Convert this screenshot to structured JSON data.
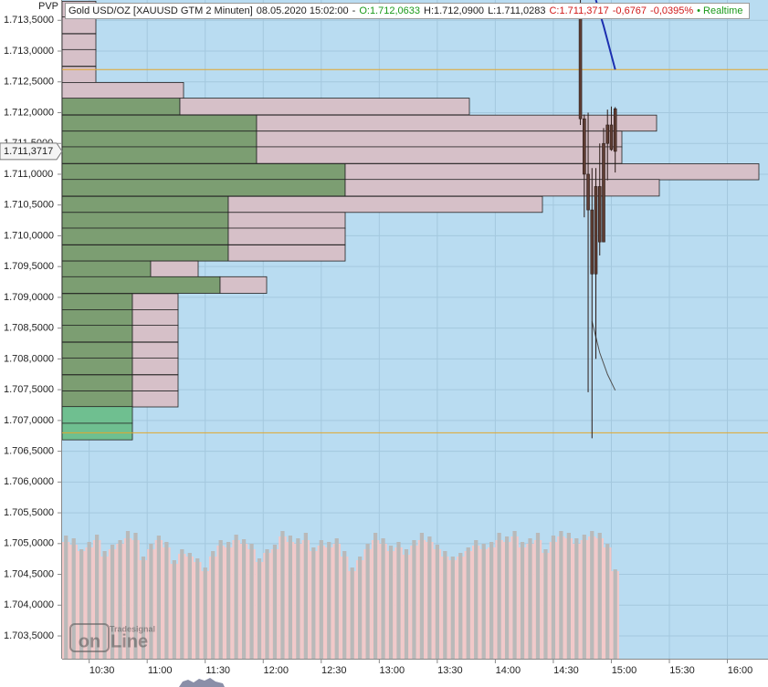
{
  "chart_data": {
    "type": "candlestick",
    "header": {
      "instrument": "Gold USD/OZ [XAUUSD GTM 2 Minuten]",
      "datetime": "08.05.2020 15:02:00",
      "separator": "-",
      "open": "O:1.712,0633",
      "high": "H:1.712,0900",
      "low": "L:1.711,0283",
      "close": "C:1.711,3717",
      "change": "-0,6767",
      "change_pct": "-0,0395%",
      "status": "• Realtime"
    },
    "pvp_label": "PVP",
    "xlim": [
      "10:16",
      "16:21"
    ],
    "xticks": [
      "10:30",
      "11:00",
      "11:30",
      "12:00",
      "12:30",
      "13:00",
      "13:30",
      "14:00",
      "14:30",
      "15:00",
      "15:30",
      "16:00"
    ],
    "ylim": [
      1.70313,
      1.71383
    ],
    "yticks": [
      {
        "value": 1.7135,
        "label": "1.713,5000"
      },
      {
        "value": 1.713,
        "label": "1.713,0000"
      },
      {
        "value": 1.7125,
        "label": "1.712,5000"
      },
      {
        "value": 1.712,
        "label": "1.712,0000"
      },
      {
        "value": 1.7115,
        "label": "1.711,5000"
      },
      {
        "value": 1.711,
        "label": "1.711,0000"
      },
      {
        "value": 1.7105,
        "label": "1.710,5000"
      },
      {
        "value": 1.71,
        "label": "1.710,0000"
      },
      {
        "value": 1.7095,
        "label": "1.709,5000"
      },
      {
        "value": 1.709,
        "label": "1.709,0000"
      },
      {
        "value": 1.7085,
        "label": "1.708,5000"
      },
      {
        "value": 1.708,
        "label": "1.708,0000"
      },
      {
        "value": 1.7075,
        "label": "1.707,5000"
      },
      {
        "value": 1.707,
        "label": "1.707,0000"
      },
      {
        "value": 1.7065,
        "label": "1.706,5000"
      },
      {
        "value": 1.706,
        "label": "1.706,0000"
      },
      {
        "value": 1.7055,
        "label": "1.705,5000"
      },
      {
        "value": 1.705,
        "label": "1.705,0000"
      },
      {
        "value": 1.7045,
        "label": "1.704,5000"
      },
      {
        "value": 1.704,
        "label": "1.704,0000"
      },
      {
        "value": 1.7035,
        "label": "1.703,5000"
      }
    ],
    "grid": true,
    "candles": {
      "color": "#5e3d33",
      "x": [
        "14:44",
        "14:46",
        "14:48",
        "14:50",
        "14:52",
        "14:54",
        "14:56",
        "14:58",
        "15:00",
        "15:02"
      ],
      "open": [
        1.71353,
        1.7119,
        1.711,
        1.71042,
        1.70938,
        1.7108,
        1.7099,
        1.7115,
        1.7118,
        1.7120633
      ],
      "high": [
        1.71383,
        1.71197,
        1.712,
        1.7111,
        1.7111,
        1.7115,
        1.71175,
        1.71205,
        1.7121,
        1.71209
      ],
      "low": [
        1.7118,
        1.7103,
        1.70746,
        1.70671,
        1.708,
        1.70968,
        1.7099,
        1.7109,
        1.71138,
        1.7110283
      ],
      "close": [
        1.7119,
        1.711,
        1.71042,
        1.70938,
        1.7108,
        1.7099,
        1.7115,
        1.7118,
        1.7114,
        1.7113717
      ]
    },
    "lines": [
      {
        "color": "#1c2fb0",
        "x": [
          "14:52",
          "14:56",
          "15:02"
        ],
        "values": [
          1.71383,
          1.71341,
          1.7127
        ]
      },
      {
        "color": "#505050",
        "x": [
          "14:50",
          "14:54",
          "14:58",
          "15:02"
        ],
        "values": [
          1.70861,
          1.7081,
          1.70775,
          1.70749
        ]
      }
    ],
    "levels": {
      "color": "#e2a72e",
      "values": [
        1.7127,
        1.7068
      ]
    },
    "last_price": {
      "value": 1.7113717,
      "label": "1.711,3717"
    },
    "profile": {
      "buy_color": "#7c9e72",
      "sell_color": "#d6c0c8",
      "prices": [
        1.71368,
        1.71342,
        1.71315,
        1.71289,
        1.71262,
        1.71236,
        1.7121,
        1.71183,
        1.71157,
        1.71131,
        1.71104,
        1.71078,
        1.71051,
        1.71025,
        1.70999,
        1.70972,
        1.70946,
        1.7092,
        1.70893,
        1.70867,
        1.70841,
        1.70814,
        1.70788,
        1.70761,
        1.70735,
        1.70709,
        1.70682
      ],
      "buy": [
        0,
        0,
        0,
        0,
        0,
        0,
        129,
        213,
        213,
        213,
        310,
        310,
        182,
        182,
        182,
        182,
        97,
        173,
        77,
        77,
        77,
        77,
        77,
        77,
        77,
        77,
        77
      ],
      "sell": [
        37,
        37,
        37,
        37,
        37,
        133,
        317,
        438,
        400,
        400,
        453,
        344,
        344,
        128,
        128,
        128,
        52,
        51,
        50,
        50,
        50,
        50,
        50,
        50,
        50,
        0,
        0
      ],
      "buy_colors": [
        "#7c9e72",
        "#7c9e72",
        "#7c9e72",
        "#7c9e72",
        "#7c9e72",
        "#7c9e72",
        "#7c9e72",
        "#7c9e72",
        "#7c9e72",
        "#7c9e72",
        "#7c9e72",
        "#7c9e72",
        "#7c9e72",
        "#7c9e72",
        "#7c9e72",
        "#7c9e72",
        "#7c9e72",
        "#7c9e72",
        "#7c9e72",
        "#7c9e72",
        "#7c9e72",
        "#7c9e72",
        "#7c9e72",
        "#7c9e72",
        "#7c9e72",
        "#6fbf90",
        "#6fbf90"
      ]
    },
    "volume": {
      "x": [
        "10:18",
        "10:22",
        "10:26",
        "10:30",
        "10:34",
        "10:38",
        "10:42",
        "10:46",
        "10:50",
        "10:54",
        "10:58",
        "11:02",
        "11:06",
        "11:10",
        "11:14",
        "11:18",
        "11:22",
        "11:26",
        "11:30",
        "11:34",
        "11:38",
        "11:42",
        "11:46",
        "11:50",
        "11:54",
        "11:58",
        "12:02",
        "12:06",
        "12:10",
        "12:14",
        "12:18",
        "12:22",
        "12:26",
        "12:30",
        "12:34",
        "12:38",
        "12:42",
        "12:46",
        "12:50",
        "12:54",
        "12:58",
        "13:02",
        "13:06",
        "13:10",
        "13:14",
        "13:18",
        "13:22",
        "13:26",
        "13:30",
        "13:34",
        "13:38",
        "13:42",
        "13:46",
        "13:50",
        "13:54",
        "13:58",
        "14:02",
        "14:06",
        "14:10",
        "14:14",
        "14:18",
        "14:22",
        "14:26",
        "14:30",
        "14:34",
        "14:38",
        "14:42",
        "14:46",
        "14:50",
        "14:54",
        "14:58",
        "15:02"
      ],
      "series": [
        {
          "color": "#f2c9c9",
          "values": [
            128,
            125,
            118,
            122,
            130,
            112,
            120,
            126,
            132,
            130,
            108,
            120,
            130,
            122,
            104,
            115,
            112,
            106,
            96,
            112,
            124,
            122,
            130,
            126,
            120,
            106,
            116,
            120,
            134,
            128,
            126,
            130,
            118,
            124,
            122,
            126,
            112,
            96,
            108,
            120,
            130,
            126,
            118,
            122,
            114,
            124,
            130,
            128,
            120,
            112,
            108,
            112,
            118,
            124,
            120,
            122,
            130,
            128,
            134,
            122,
            126,
            130,
            116,
            128,
            134,
            132,
            126,
            130,
            134,
            132,
            122,
            96
          ]
        },
        {
          "color": "#b9b9b9",
          "values": [
            135,
            132,
            120,
            128,
            136,
            118,
            125,
            130,
            140,
            138,
            112,
            126,
            135,
            128,
            108,
            120,
            116,
            110,
            100,
            118,
            130,
            128,
            136,
            131,
            126,
            110,
            120,
            125,
            140,
            135,
            132,
            138,
            122,
            130,
            128,
            132,
            118,
            100,
            112,
            126,
            138,
            132,
            124,
            128,
            120,
            130,
            138,
            134,
            125,
            118,
            112,
            116,
            122,
            130,
            126,
            128,
            138,
            134,
            140,
            128,
            132,
            138,
            120,
            135,
            140,
            138,
            132,
            136,
            140,
            138,
            126,
            98
          ]
        }
      ]
    },
    "watermark": {
      "brand": "Tradesignal",
      "mark": "on",
      "word": "Line"
    }
  }
}
